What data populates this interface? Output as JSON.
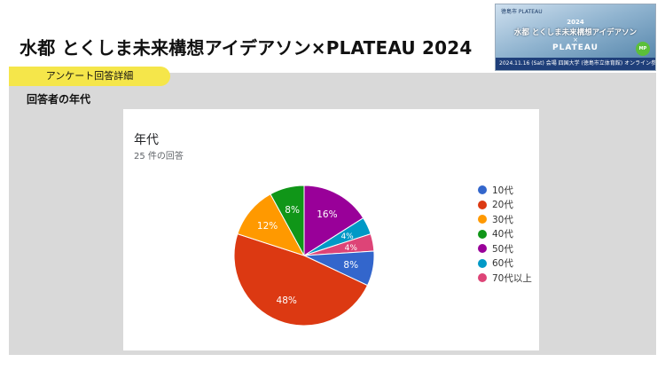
{
  "slide": {
    "title": "水都 とくしま未来構想アイデアソン×PLATEAU 2024",
    "tab_label": "アンケート回答詳細",
    "section_label": "回答者の年代"
  },
  "banner": {
    "top_text": "徳島市 PLATEAU",
    "year": "2024",
    "title": "水都 とくしま未来構想アイデアソン",
    "x": "×",
    "plateau": "PLATEAU",
    "bottom": "2024.11.16 (Sat) 会場 四国大学 (徳島市立体育館) オンライン参加可",
    "badge": "MP"
  },
  "card": {
    "title": "年代",
    "subtitle": "25 件の回答"
  },
  "chart_data": {
    "type": "pie",
    "title": "年代",
    "subtitle": "25 件の回答",
    "legend_position": "right",
    "categories": [
      "10代",
      "20代",
      "30代",
      "40代",
      "50代",
      "60代",
      "70代以上"
    ],
    "values": [
      8,
      48,
      12,
      8,
      16,
      4,
      4
    ],
    "labels": [
      "8%",
      "48%",
      "12%",
      "8%",
      "16%",
      "4%",
      "4%"
    ],
    "colors": [
      "#3366cc",
      "#dc3912",
      "#ff9900",
      "#109618",
      "#990099",
      "#0099c6",
      "#dd4477"
    ]
  }
}
